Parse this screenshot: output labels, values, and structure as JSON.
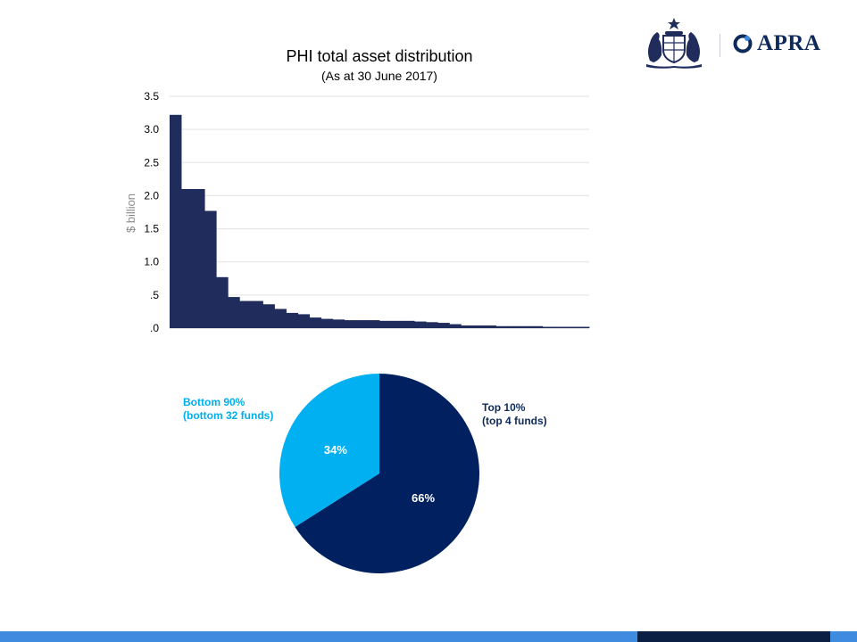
{
  "branding": {
    "apra_wordmark": "APRA",
    "crest_icon": "australian-coat-of-arms-icon",
    "apra_icon": "apra-ring-icon"
  },
  "colors": {
    "bar": "#1f2c5c",
    "pie_top": "#002060",
    "pie_bottom": "#00b0f0",
    "label_top": "#0d2a5b",
    "label_bottom": "#00aeef",
    "footer": "#3f8be0",
    "footer_dark": "#0b1f45"
  },
  "chart_data": [
    {
      "type": "bar",
      "title": "PHI total asset distribution",
      "subtitle": "(As at 30 June 2017)",
      "xlabel": "",
      "ylabel": "$ billion",
      "ylim": [
        0,
        3.5
      ],
      "yticks": [
        0,
        0.5,
        1.0,
        1.5,
        2.0,
        2.5,
        3.0,
        3.5
      ],
      "ytick_labels": [
        ".0",
        ".5",
        "1.0",
        "1.5",
        "2.0",
        "2.5",
        "3.0",
        "3.5"
      ],
      "grid": true,
      "values": [
        3.22,
        2.1,
        2.1,
        1.77,
        0.77,
        0.47,
        0.41,
        0.41,
        0.36,
        0.29,
        0.23,
        0.21,
        0.16,
        0.14,
        0.13,
        0.12,
        0.12,
        0.12,
        0.11,
        0.11,
        0.11,
        0.1,
        0.09,
        0.08,
        0.06,
        0.04,
        0.04,
        0.04,
        0.03,
        0.03,
        0.03,
        0.03,
        0.02,
        0.02,
        0.02,
        0.02
      ]
    },
    {
      "type": "pie",
      "slices": [
        {
          "label": "Top 10%",
          "sublabel": "(top 4 funds)",
          "value": 66,
          "value_label": "66%"
        },
        {
          "label": "Bottom 90%",
          "sublabel": "(bottom 32 funds)",
          "value": 34,
          "value_label": "34%"
        }
      ]
    }
  ]
}
